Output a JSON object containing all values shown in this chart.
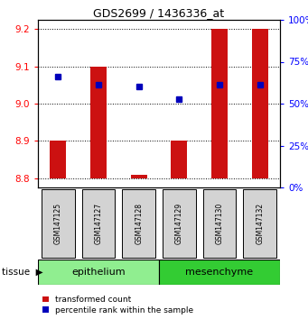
{
  "title": "GDS2699 / 1436336_at",
  "samples": [
    "GSM147125",
    "GSM147127",
    "GSM147128",
    "GSM147129",
    "GSM147130",
    "GSM147132"
  ],
  "groups": [
    "epithelium",
    "epithelium",
    "epithelium",
    "mesenchyme",
    "mesenchyme",
    "mesenchyme"
  ],
  "epi_color": "#90EE90",
  "mes_color": "#33CC33",
  "bar_bottom": 8.8,
  "bar_tops": [
    8.9,
    9.1,
    8.81,
    8.9,
    9.2,
    9.2
  ],
  "blue_y": [
    9.073,
    9.052,
    9.045,
    9.012,
    9.052,
    9.05
  ],
  "ylim": [
    8.775,
    9.225
  ],
  "yticks": [
    8.8,
    8.9,
    9.0,
    9.1,
    9.2
  ],
  "pct_yticks": [
    0,
    25,
    50,
    75,
    100
  ],
  "bar_color": "#CC1111",
  "dot_color": "#0000BB",
  "bar_width": 0.4,
  "legend_items": [
    "transformed count",
    "percentile rank within the sample"
  ],
  "group_label_epithelium": "epithelium",
  "group_label_mesenchyme": "mesenchyme"
}
